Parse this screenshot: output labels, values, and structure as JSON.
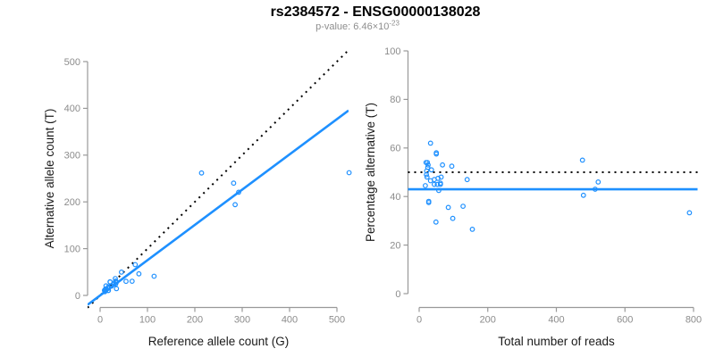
{
  "header": {
    "title": "rs2384572 - ENSG00000138028",
    "subtitle_prefix": "p-value: ",
    "subtitle_value": "6.46×10",
    "subtitle_exponent": "-23"
  },
  "colors": {
    "accent_blue": "#1E90FF",
    "reference_black": "#000000",
    "axis_line": "#999999",
    "tick_text": "#8c8c8c",
    "axis_title_text": "#1a1a1a",
    "subtitle_text": "#8e8e8e"
  },
  "chart_data": [
    {
      "type": "scatter",
      "name": "allele-counts",
      "xlabel": "Reference allele count (G)",
      "ylabel": "Alternative allele count (T)",
      "xlim": [
        0,
        500
      ],
      "ylim": [
        0,
        500
      ],
      "xticks": [
        0,
        100,
        200,
        300,
        400,
        500
      ],
      "yticks": [
        0,
        100,
        200,
        300,
        400,
        500
      ],
      "grid": false,
      "legend": "none",
      "marker": "open-circle",
      "points": [
        [
          12.5,
          20.5
        ],
        [
          21.0,
          29.0
        ],
        [
          21.3,
          28.8
        ],
        [
          9.2,
          10.8
        ],
        [
          11.0,
          13.0
        ],
        [
          12.2,
          13.8
        ],
        [
          32.0,
          36.0
        ],
        [
          45.1,
          49.9
        ],
        [
          214.2,
          261.8
        ],
        [
          12.0,
          11.0
        ],
        [
          17.7,
          15.3
        ],
        [
          23.3,
          20.7
        ],
        [
          28.9,
          26.1
        ],
        [
          33.3,
          30.7
        ],
        [
          74.2,
          65.8
        ],
        [
          10.0,
          8.0
        ],
        [
          24.2,
          19.8
        ],
        [
          29.2,
          23.9
        ],
        [
          33.8,
          28.2
        ],
        [
          34.1,
          27.9
        ],
        [
          281.9,
          240.1
        ],
        [
          32.8,
          24.2
        ],
        [
          292.4,
          220.6
        ],
        [
          17.4,
          10.6
        ],
        [
          17.5,
          10.5
        ],
        [
          285.0,
          194.0
        ],
        [
          34.5,
          14.5
        ],
        [
          54.8,
          30.2
        ],
        [
          67.6,
          30.4
        ],
        [
          81.9,
          46.1
        ],
        [
          113.9,
          41.1
        ],
        [
          525.6,
          262.4
        ],
        [
          17.6,
          18.4
        ],
        [
          10.9,
          11.1
        ],
        [
          12.0,
          13.0
        ],
        [
          10.7,
          10.3
        ]
      ],
      "lines": [
        {
          "name": "identity-line",
          "style": "dotted",
          "color": "#000000",
          "slope": 1,
          "intercept": 0
        },
        {
          "name": "fit-line",
          "style": "solid",
          "color": "#1E90FF",
          "slope": 0.754,
          "intercept": 0
        }
      ]
    },
    {
      "type": "scatter",
      "name": "percentage-alternative",
      "xlabel": "Total number of reads",
      "ylabel": "Percentage alternative (T)",
      "xlim": [
        0,
        800
      ],
      "ylim": [
        0,
        100
      ],
      "xticks": [
        0,
        200,
        400,
        600,
        800
      ],
      "yticks": [
        0,
        20,
        40,
        60,
        80,
        100
      ],
      "grid": false,
      "legend": "none",
      "marker": "open-circle",
      "points": [
        [
          33,
          62
        ],
        [
          50,
          58
        ],
        [
          50,
          57.5
        ],
        [
          20,
          54
        ],
        [
          24,
          54
        ],
        [
          26,
          53
        ],
        [
          68,
          53
        ],
        [
          95,
          52.5
        ],
        [
          476,
          55
        ],
        [
          23,
          48
        ],
        [
          33,
          46.5
        ],
        [
          44,
          47
        ],
        [
          55,
          47.5
        ],
        [
          64,
          48
        ],
        [
          140,
          47
        ],
        [
          18,
          44.5
        ],
        [
          44,
          45
        ],
        [
          53,
          45
        ],
        [
          62,
          45.5
        ],
        [
          62,
          45
        ],
        [
          522,
          46
        ],
        [
          57,
          42.5
        ],
        [
          513,
          43
        ],
        [
          28,
          38
        ],
        [
          28,
          37.5
        ],
        [
          479,
          40.5
        ],
        [
          49,
          29.5
        ],
        [
          85,
          35.5
        ],
        [
          98,
          31
        ],
        [
          128,
          36
        ],
        [
          155,
          26.5
        ],
        [
          788,
          33.3
        ],
        [
          36,
          51
        ],
        [
          22,
          50.5
        ],
        [
          25,
          52
        ],
        [
          21,
          49
        ]
      ],
      "lines": [
        {
          "name": "expected-50-line",
          "style": "dotted",
          "color": "#000000",
          "slope": 0,
          "intercept": 50
        },
        {
          "name": "mean-percentage-line",
          "style": "solid",
          "color": "#1E90FF",
          "slope": 0,
          "intercept": 43
        }
      ]
    }
  ]
}
